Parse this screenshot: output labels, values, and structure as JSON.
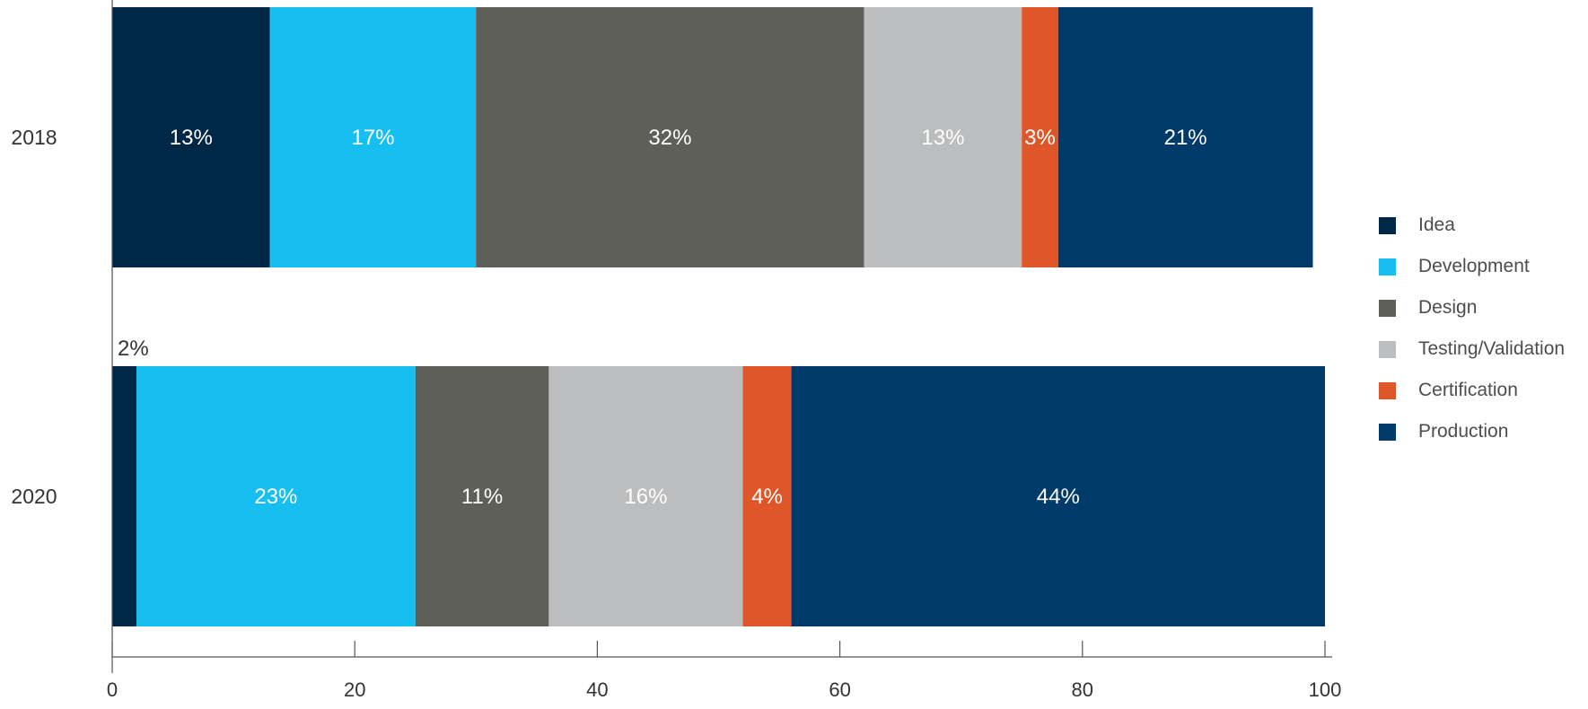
{
  "chart_data": {
    "type": "bar",
    "orientation": "horizontal",
    "stacked": true,
    "categories": [
      "2018",
      "2020"
    ],
    "series": [
      {
        "name": "Idea",
        "values": [
          13,
          2
        ],
        "labels": [
          "13%",
          "2%"
        ],
        "color": "#002846"
      },
      {
        "name": "Development",
        "values": [
          17,
          23
        ],
        "labels": [
          "17%",
          "23%"
        ],
        "color": "#17bef0"
      },
      {
        "name": "Design",
        "values": [
          32,
          11
        ],
        "labels": [
          "32%",
          "11%"
        ],
        "color": "#5f5f5a"
      },
      {
        "name": "Testing/Validation",
        "values": [
          13,
          16
        ],
        "labels": [
          "13%",
          "16%"
        ],
        "color": "#bcbdbf"
      },
      {
        "name": "Certification",
        "values": [
          3,
          4
        ],
        "labels": [
          "3%",
          "4%"
        ],
        "color": "#df5728"
      },
      {
        "name": "Production",
        "values": [
          21,
          44
        ],
        "labels": [
          "21%",
          "44%"
        ],
        "color": "#003a6a"
      }
    ],
    "xlim": [
      0,
      100
    ],
    "xticks": [
      "0",
      "20",
      "40",
      "60",
      "80",
      "100"
    ],
    "grid": false,
    "legend_position": "right"
  }
}
